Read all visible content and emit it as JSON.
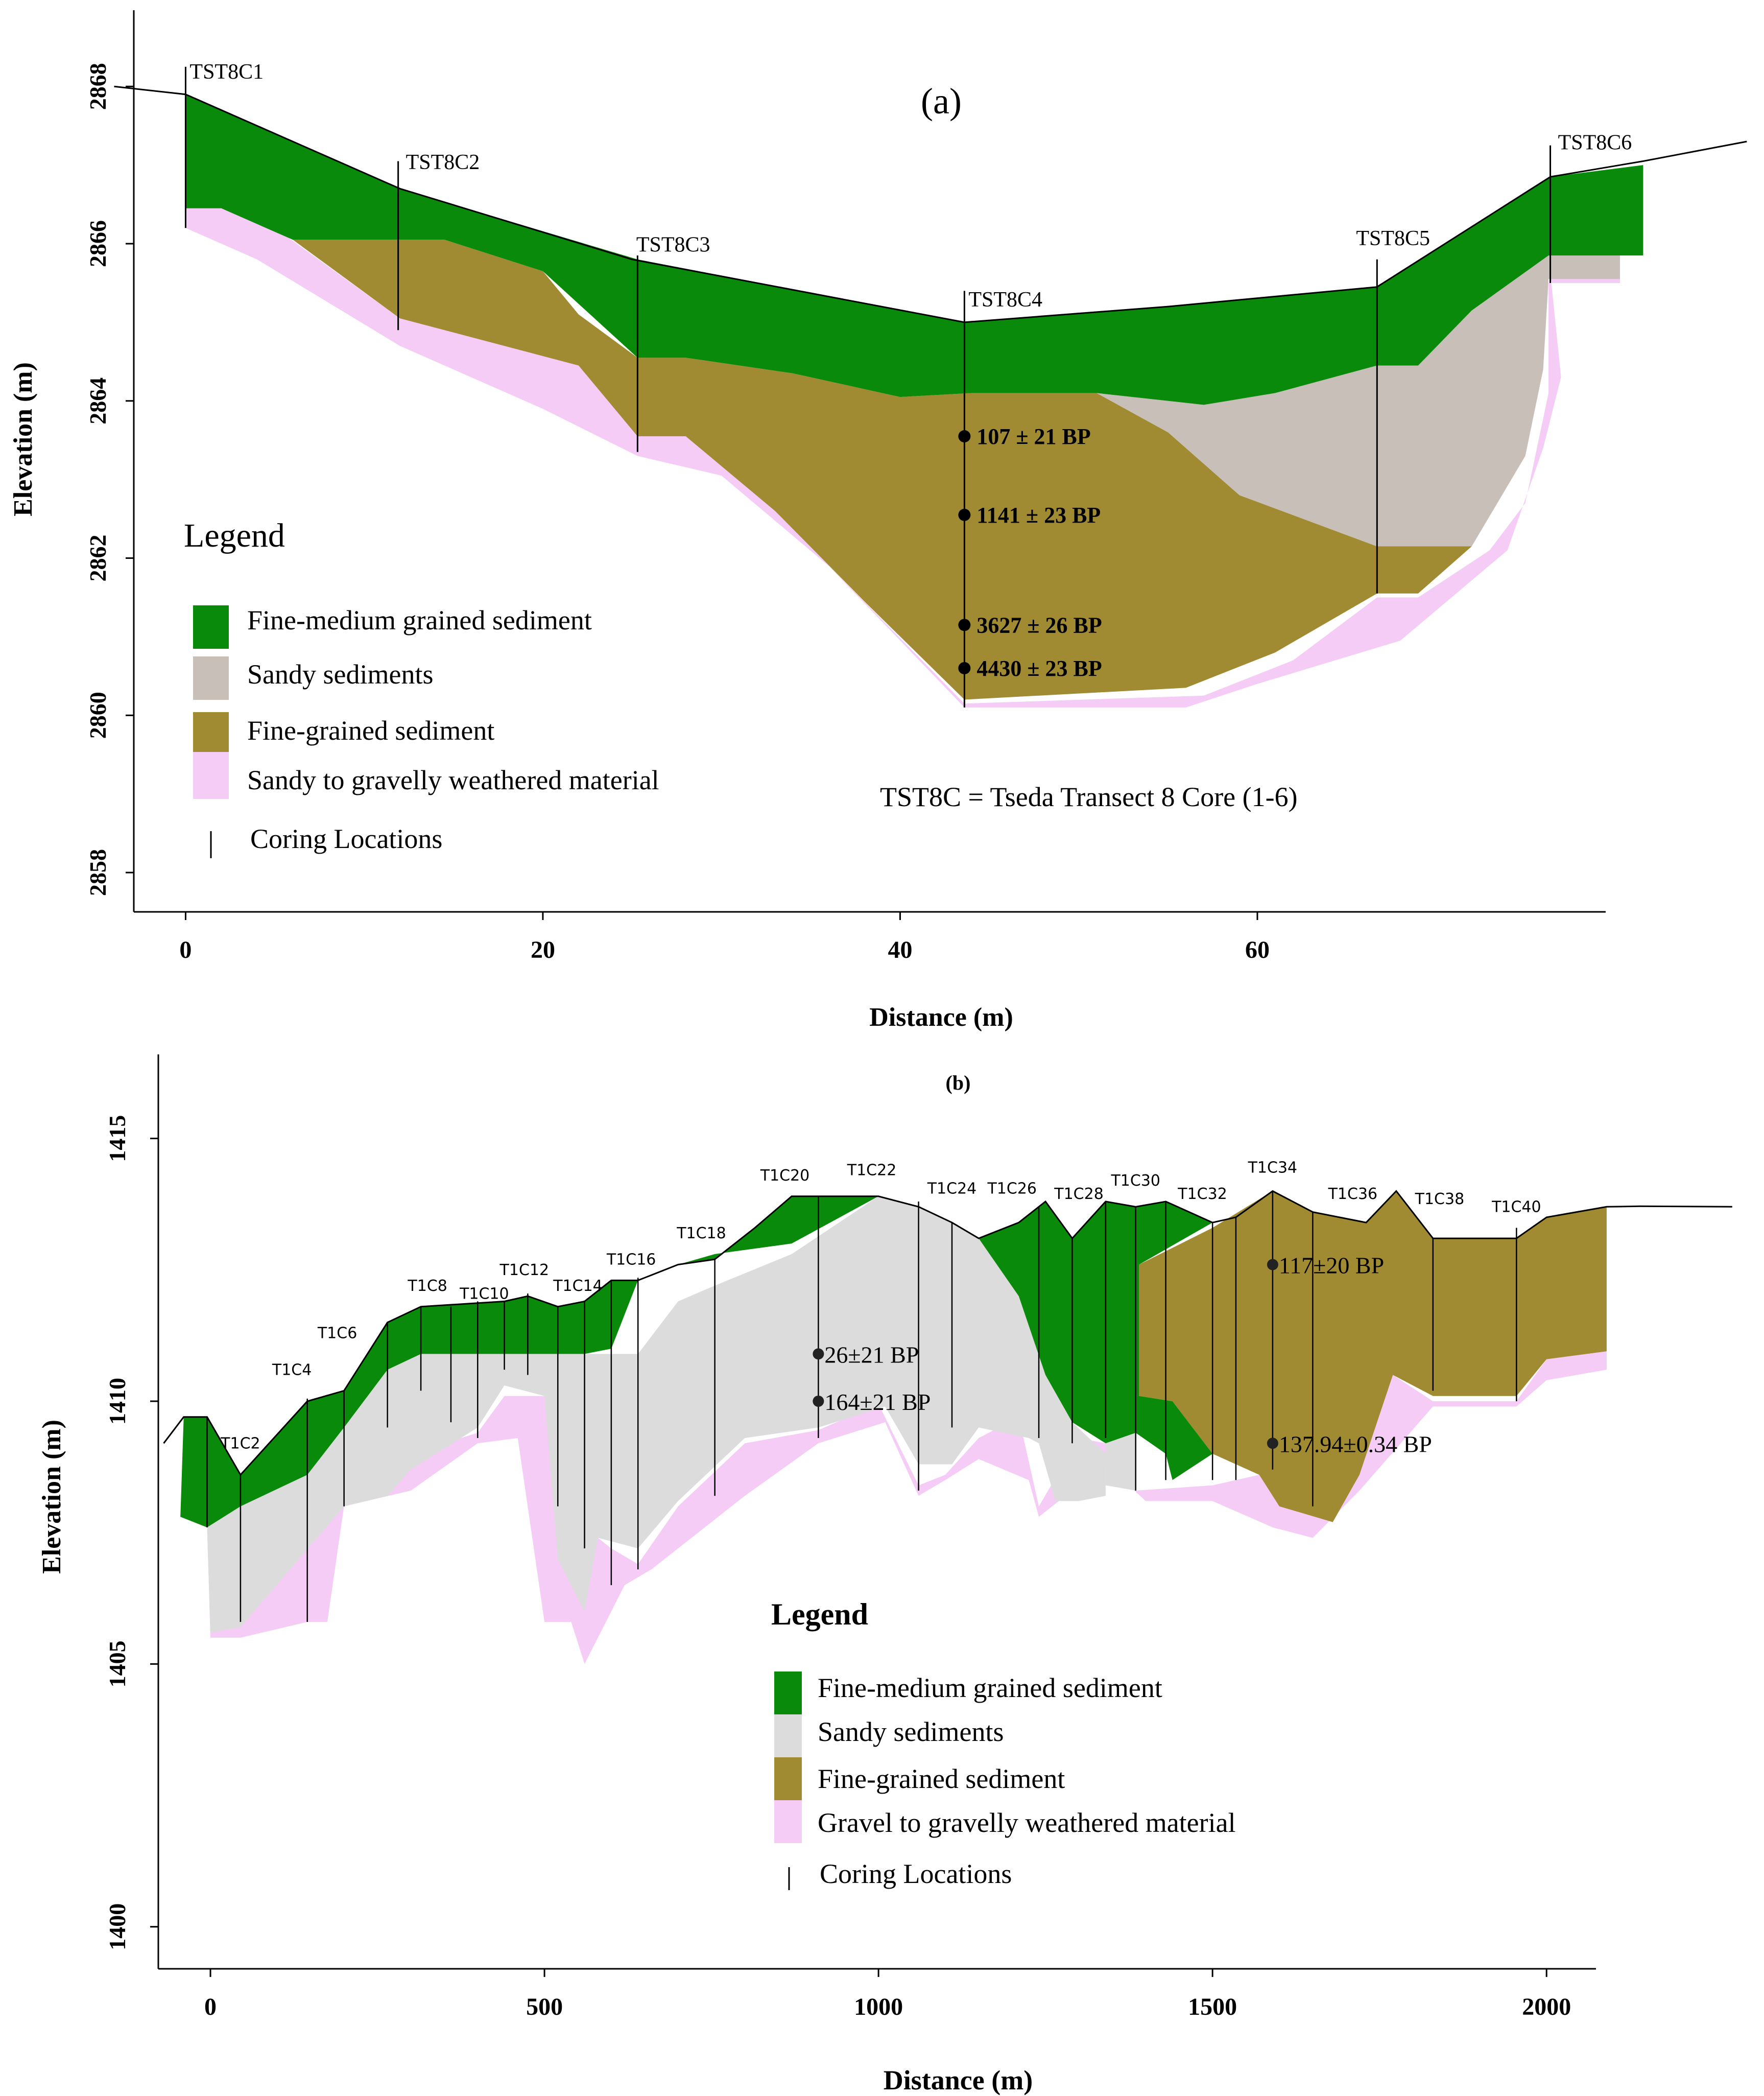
{
  "colors": {
    "fine_medium": "#0a8a0a",
    "sandy": "#c9bfb9",
    "sandy_b": "#dcdcdc",
    "fine": "#a08a32",
    "weathered": "#f4ccf6",
    "axis": "#000000"
  },
  "chart_data": [
    {
      "id": "a",
      "type": "area",
      "title": "(a)",
      "xlabel": "Distance (m)",
      "ylabel": "Elevation (m)",
      "xlim": [
        -2.9,
        79.5
      ],
      "ylim": [
        2857.5,
        2869.1
      ],
      "x_ticks": [
        0,
        20,
        40,
        60
      ],
      "y_ticks": [
        2858,
        2860,
        2862,
        2864,
        2866,
        2868
      ],
      "surface": [
        [
          -4,
          2868.0
        ],
        [
          0,
          2867.9
        ],
        [
          12,
          2866.7
        ],
        [
          25,
          2865.8
        ],
        [
          43.6,
          2865.0
        ],
        [
          55,
          2865.2
        ],
        [
          66.7,
          2865.45
        ],
        [
          76.4,
          2866.85
        ],
        [
          81.6,
          2867.05
        ],
        [
          87.4,
          2867.3
        ]
      ],
      "cores": [
        {
          "label": "TST8C1",
          "x": 0.0,
          "top": 2868.25,
          "bottom": 2866.2
        },
        {
          "label": "TST8C2",
          "x": 11.9,
          "top": 2867.05,
          "bottom": 2864.9
        },
        {
          "label": "TST8C3",
          "x": 25.3,
          "top": 2865.85,
          "bottom": 2863.35
        },
        {
          "label": "TST8C4",
          "x": 43.6,
          "top": 2865.4,
          "bottom": 2860.1
        },
        {
          "label": "TST8C5",
          "x": 66.7,
          "top": 2865.8,
          "bottom": 2861.55
        },
        {
          "label": "TST8C6",
          "x": 76.4,
          "top": 2867.25,
          "bottom": 2865.5
        }
      ],
      "dates": [
        {
          "label": "107 ± 21 BP",
          "x": 43.6,
          "y": 2863.55
        },
        {
          "label": "1141 ± 23 BP",
          "x": 43.6,
          "y": 2862.55
        },
        {
          "label": "3627 ± 26 BP",
          "x": 43.6,
          "y": 2861.15
        },
        {
          "label": "4430 ± 23 BP",
          "x": 43.6,
          "y": 2860.6
        }
      ],
      "note": "TST8C = Tseda Transect 8 Core (1-6)",
      "legend_title": "Legend",
      "legend": [
        {
          "label": "Fine-medium grained sediment",
          "key": "fine_medium"
        },
        {
          "label": "Sandy sediments",
          "key": "sandy"
        },
        {
          "label": "Fine-grained sediment",
          "key": "fine"
        },
        {
          "label": "Sandy to gravelly weathered material",
          "key": "weathered"
        },
        {
          "label": "Coring Locations",
          "key": "core"
        }
      ]
    },
    {
      "id": "b",
      "type": "area",
      "title": "(b)",
      "xlabel": "Distance (m)",
      "ylabel": "Elevation (m)",
      "xlim": [
        -78,
        2074
      ],
      "ylim": [
        1399.2,
        1416.6
      ],
      "x_ticks": [
        0,
        500,
        1000,
        1500,
        2000
      ],
      "y_ticks": [
        1400,
        1405,
        1410,
        1415
      ],
      "surface": [
        [
          -70,
          1409.2
        ],
        [
          -40,
          1409.7
        ],
        [
          -5,
          1409.7
        ],
        [
          45,
          1408.6
        ],
        [
          145,
          1410.0
        ],
        [
          200,
          1410.2
        ],
        [
          265,
          1411.5
        ],
        [
          315,
          1411.8
        ],
        [
          440,
          1411.9
        ],
        [
          475,
          1412.0
        ],
        [
          520,
          1411.8
        ],
        [
          560,
          1411.9
        ],
        [
          600,
          1412.3
        ],
        [
          640,
          1412.3
        ],
        [
          700,
          1412.6
        ],
        [
          755,
          1412.7
        ],
        [
          815,
          1413.3
        ],
        [
          870,
          1413.9
        ],
        [
          1000,
          1413.9
        ],
        [
          1060,
          1413.7
        ],
        [
          1110,
          1413.4
        ],
        [
          1150,
          1413.1
        ],
        [
          1210,
          1413.4
        ],
        [
          1250,
          1413.8
        ],
        [
          1290,
          1413.1
        ],
        [
          1340,
          1413.8
        ],
        [
          1385,
          1413.7
        ],
        [
          1430,
          1413.8
        ],
        [
          1500,
          1413.4
        ],
        [
          1535,
          1413.5
        ],
        [
          1590,
          1414.0
        ],
        [
          1650,
          1413.6
        ],
        [
          1730,
          1413.4
        ],
        [
          1775,
          1414.0
        ],
        [
          1830,
          1413.1
        ],
        [
          1955,
          1413.1
        ],
        [
          2000,
          1413.5
        ],
        [
          2090,
          1413.7
        ],
        [
          2140,
          1413.71
        ],
        [
          2278,
          1413.7
        ]
      ],
      "cores": [
        {
          "label": "T1C2",
          "x": 45,
          "top": 1408.6,
          "bottom": 1405.8,
          "lx": 45,
          "ly": 1409.1
        },
        {
          "label": "T1C4",
          "x": 145,
          "top": 1410.05,
          "bottom": 1405.8,
          "lx": 122,
          "ly": 1410.5
        },
        {
          "label": "T1C6",
          "x": 200,
          "top": 1410.2,
          "bottom": 1408.0,
          "lx": 190,
          "ly": 1411.2
        },
        {
          "label": "T1C8",
          "x": 315,
          "top": 1411.8,
          "bottom": 1410.2,
          "lx": 325,
          "ly": 1412.1
        },
        {
          "label": "T1C10",
          "x": 400,
          "top": 1411.9,
          "bottom": 1409.3,
          "lx": 410,
          "ly": 1411.95
        },
        {
          "label": "T1C12",
          "x": 475,
          "top": 1412.05,
          "bottom": 1410.5,
          "lx": 470,
          "ly": 1412.4
        },
        {
          "label": "T1C14",
          "x": 560,
          "top": 1411.9,
          "bottom": 1407.2,
          "lx": 550,
          "ly": 1412.1
        },
        {
          "label": "T1C16",
          "x": 640,
          "top": 1412.35,
          "bottom": 1406.8,
          "lx": 630,
          "ly": 1412.6
        },
        {
          "label": "T1C18",
          "x": 755,
          "top": 1412.7,
          "bottom": 1408.2,
          "lx": 735,
          "ly": 1413.1
        },
        {
          "label": "T1C20",
          "x": 910,
          "top": 1413.9,
          "bottom": 1409.3,
          "lx": 860,
          "ly": 1414.2
        },
        {
          "label": "T1C22",
          "x": 1000,
          "top": 1413.9,
          "bottom": 1413.9,
          "lx": 990,
          "ly": 1414.3
        },
        {
          "label": "T1C24",
          "x": 1110,
          "top": 1413.4,
          "bottom": 1409.5,
          "lx": 1110,
          "ly": 1413.95
        },
        {
          "label": "T1C26",
          "x": 1240,
          "top": 1413.7,
          "bottom": 1409.3,
          "lx": 1200,
          "ly": 1413.95
        },
        {
          "label": "T1C28",
          "x": 1340,
          "top": 1413.8,
          "bottom": 1409.3,
          "lx": 1300,
          "ly": 1413.85
        },
        {
          "label": "T1C30",
          "x": 1385,
          "top": 1413.7,
          "bottom": 1408.3,
          "lx": 1385,
          "ly": 1414.1
        },
        {
          "label": "T1C32",
          "x": 1500,
          "top": 1413.4,
          "bottom": 1408.5,
          "lx": 1485,
          "ly": 1413.85
        },
        {
          "label": "T1C34",
          "x": 1590,
          "top": 1414.0,
          "bottom": 1408.7,
          "lx": 1590,
          "ly": 1414.35
        },
        {
          "label": "T1C36",
          "x": 1650,
          "top": 1413.6,
          "bottom": 1408.0,
          "lx": 1710,
          "ly": 1413.85
        },
        {
          "label": "T1C38",
          "x": 1830,
          "top": 1413.1,
          "bottom": 1410.2,
          "lx": 1840,
          "ly": 1413.75
        },
        {
          "label": "T1C40",
          "x": 1955,
          "top": 1413.3,
          "bottom": 1410.0,
          "lx": 1955,
          "ly": 1413.6
        }
      ],
      "dates": [
        {
          "label": "26±21 BP",
          "x": 910,
          "y": 1410.9
        },
        {
          "label": "164±21 BP",
          "x": 910,
          "y": 1410.0
        },
        {
          "label": "117±20 BP",
          "x": 1590,
          "y": 1412.6
        },
        {
          "label": "137.94±0.34 BP",
          "x": 1590,
          "y": 1409.2
        }
      ],
      "legend_title": "Legend",
      "legend": [
        {
          "label": "Fine-medium grained sediment",
          "key": "fine_medium"
        },
        {
          "label": "Sandy sediments",
          "key": "sandy_b"
        },
        {
          "label": "Fine-grained sediment",
          "key": "fine"
        },
        {
          "label": "Gravel to gravelly weathered material",
          "key": "weathered"
        },
        {
          "label": "Coring Locations",
          "key": "core"
        }
      ]
    }
  ]
}
